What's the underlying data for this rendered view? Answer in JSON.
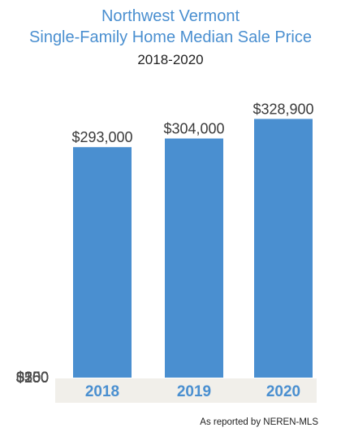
{
  "title_line1": "Northwest Vermont",
  "title_line2": "Single-Family Home Median Sale Price",
  "subtitle": "2018-2020",
  "source": "As reported by NEREN-MLS",
  "colors": {
    "bar": "#4a8fd0",
    "title": "#4a8fd0",
    "category_band": "#f1efea"
  },
  "chart_data": {
    "type": "bar",
    "title": "Northwest Vermont Single-Family Home Median Sale Price",
    "subtitle": "2018-2020",
    "categories": [
      "2018",
      "2019",
      "2020"
    ],
    "values": [
      293000,
      304000,
      328900
    ],
    "data_labels": [
      "$293,000",
      "$304,000",
      "$328,900"
    ],
    "y_ticks": [
      0,
      50,
      100,
      150,
      200,
      250,
      300,
      350
    ],
    "y_tick_labels": [
      "0",
      "$50",
      "$100",
      "$150",
      "$200",
      "$250",
      "$300",
      "$350"
    ],
    "ylim": [
      0,
      350000
    ],
    "grid": false,
    "legend": "none"
  }
}
